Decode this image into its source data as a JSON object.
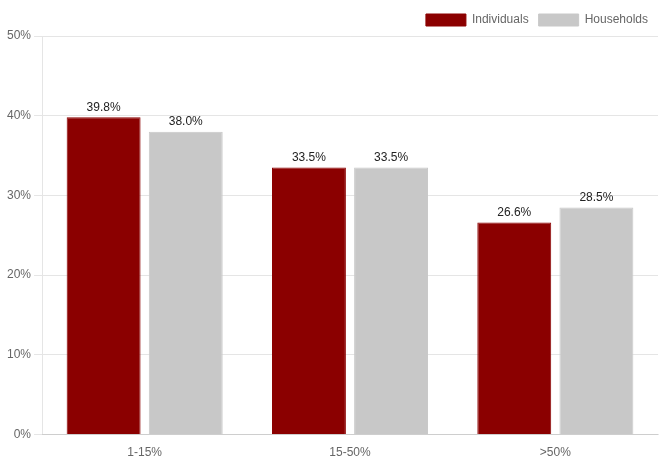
{
  "chart_data": {
    "type": "bar",
    "categories": [
      "1-15%",
      "15-50%",
      ">50%"
    ],
    "series": [
      {
        "name": "Individuals",
        "color": "#8B0000",
        "values": [
          39.8,
          33.5,
          26.6
        ],
        "value_labels": [
          "39.8%",
          "33.5%",
          "26.6%"
        ]
      },
      {
        "name": "Households",
        "color": "#C8C8C8",
        "values": [
          38.0,
          33.5,
          28.5
        ],
        "value_labels": [
          "38.0%",
          "33.5%",
          "28.5%"
        ]
      }
    ],
    "ylim": [
      0,
      50
    ],
    "yticks": [
      {
        "value": 0,
        "label": "0%"
      },
      {
        "value": 10,
        "label": "10%"
      },
      {
        "value": 20,
        "label": "20%"
      },
      {
        "value": 30,
        "label": "30%"
      },
      {
        "value": 40,
        "label": "40%"
      },
      {
        "value": 50,
        "label": "50%"
      }
    ],
    "grid": true,
    "legend": "upper right",
    "data_labels": true
  }
}
